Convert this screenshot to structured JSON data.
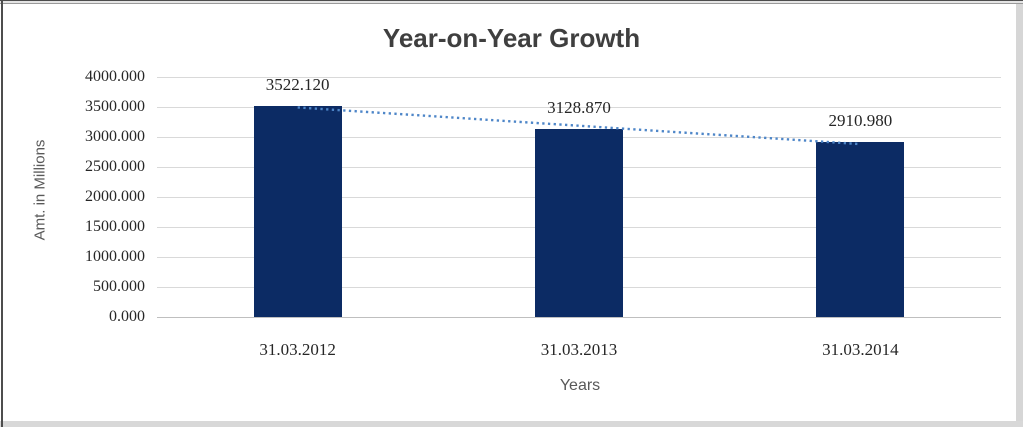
{
  "chart_data": {
    "type": "bar",
    "title": "Year-on-Year Growth",
    "xlabel": "Years",
    "ylabel": "Amt. in Millions",
    "categories": [
      "31.03.2012",
      "31.03.2013",
      "31.03.2014"
    ],
    "values": [
      3522.12,
      3128.87,
      2910.98
    ],
    "data_labels": [
      "3522.120",
      "3128.870",
      "2910.980"
    ],
    "ylim": [
      0,
      4000
    ],
    "ytick_step": 500,
    "ytick_labels": [
      "0.000",
      "500.000",
      "1000.000",
      "1500.000",
      "2000.000",
      "2500.000",
      "3000.000",
      "3500.000",
      "4000.000"
    ],
    "grid": true,
    "legend": false,
    "bar_color": "#0c2b64",
    "trendline": {
      "type": "linear",
      "style": "dotted",
      "color": "#4e86c8"
    }
  }
}
